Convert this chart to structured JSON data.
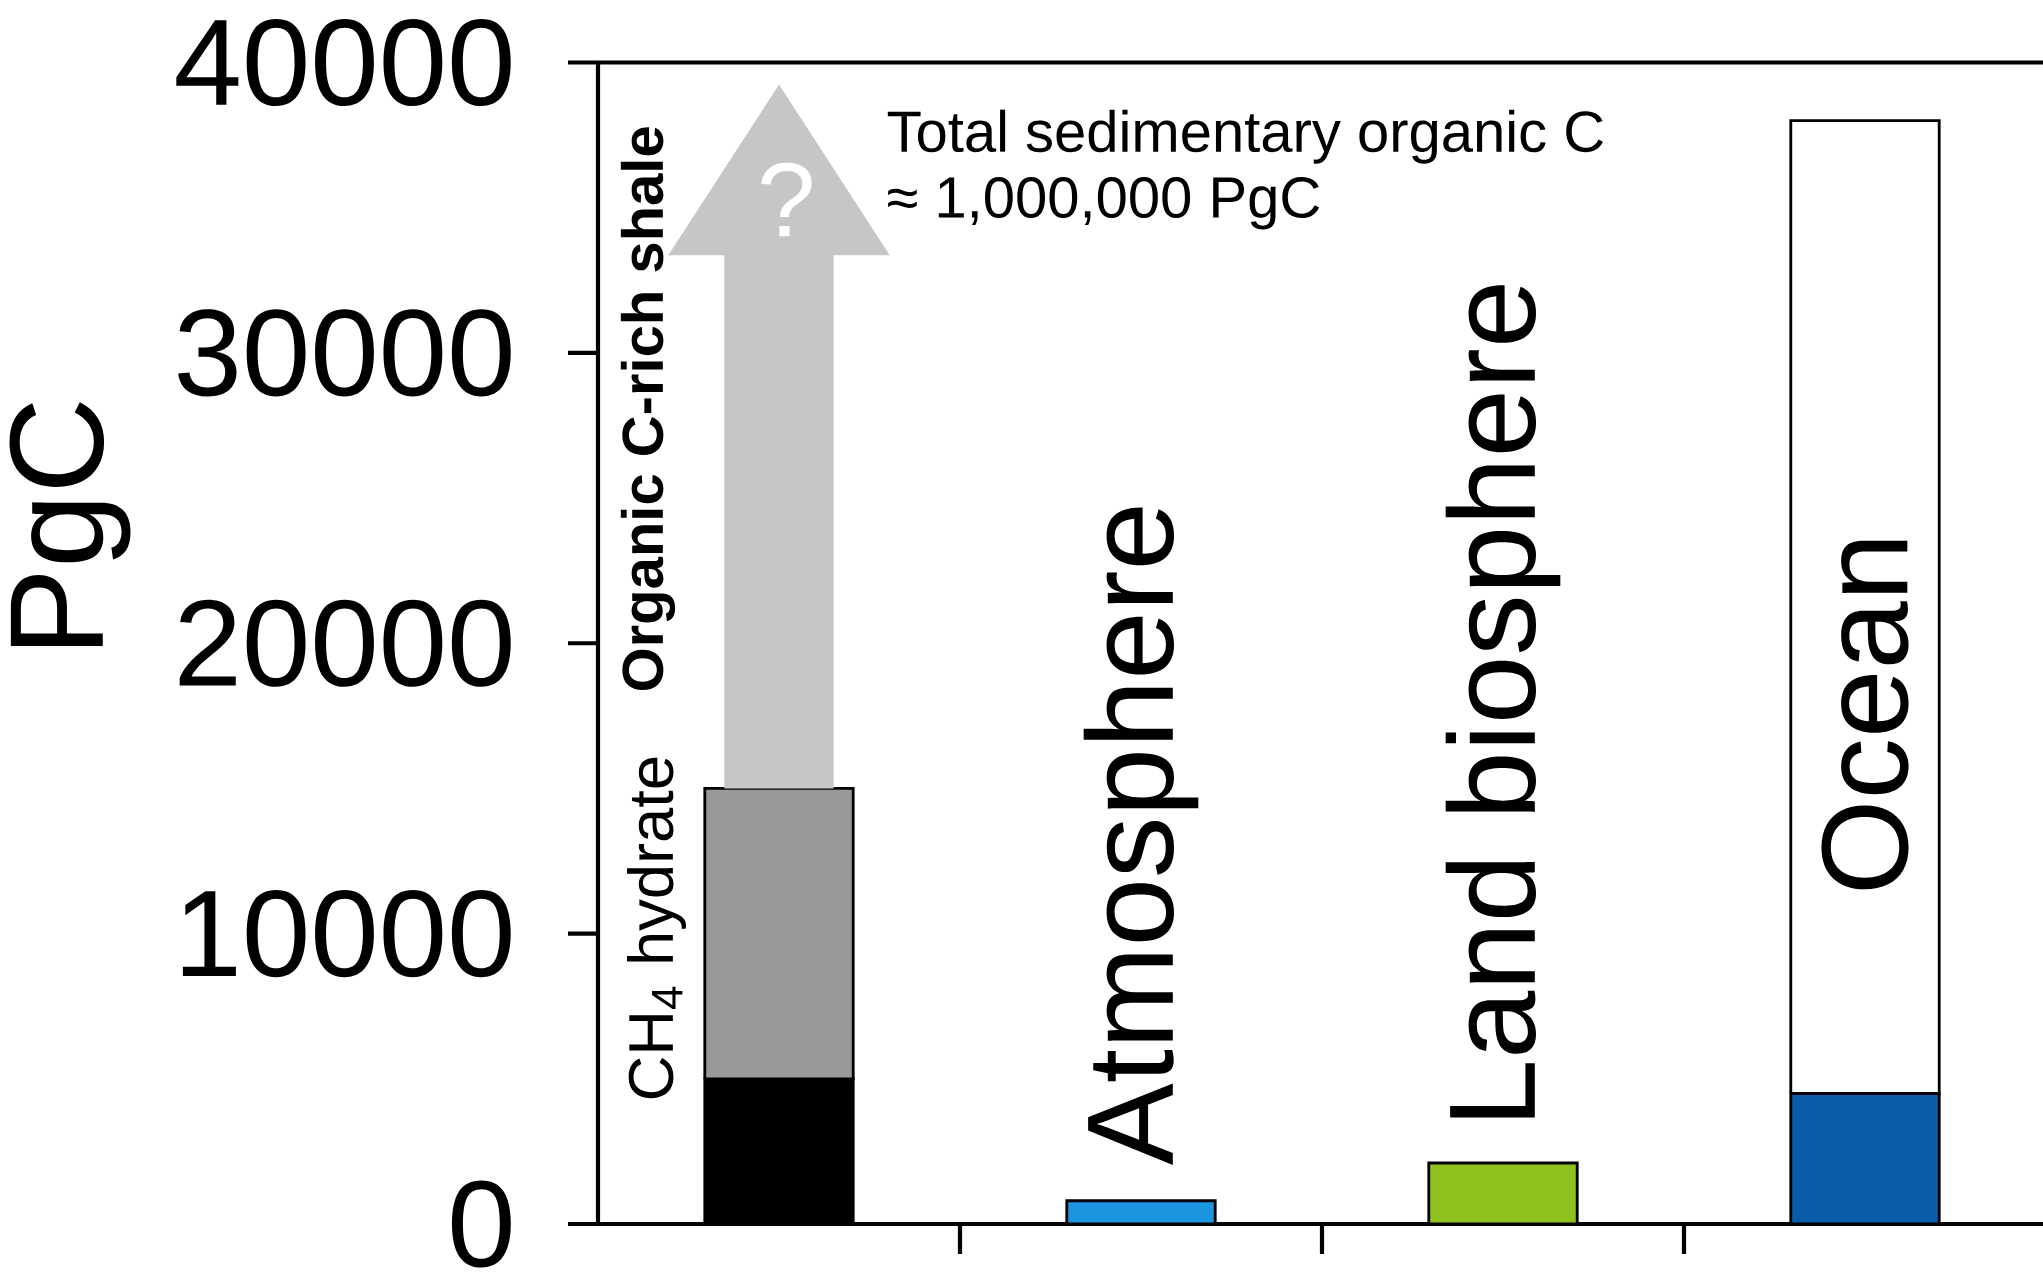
{
  "chart_data": {
    "type": "bar",
    "stacked": true,
    "ylabel": "PgC",
    "categories": [
      "CH$_{4}$ hydrate",
      "Atmosphere",
      "Land biosphere",
      "Ocean"
    ],
    "series": [
      {
        "colors": [
          "#000000",
          "#1b95e0",
          "#8dc21f",
          "#0b5dab"
        ],
        "values": [
          5000,
          800,
          2100,
          4500
        ]
      },
      {
        "colors": [
          "#999999",
          "#999999",
          "#999999",
          "#ffffff"
        ],
        "values": [
          10000,
          null,
          null,
          33500
        ]
      }
    ],
    "ylim": [
      0,
      40000
    ],
    "yticks": [
      0,
      10000,
      20000,
      30000,
      40000
    ],
    "annotations": [
      "Organic C-rich shale",
      "?",
      "Total sedimentary organic C",
      "≈ 1,000,000 PgC"
    ]
  }
}
